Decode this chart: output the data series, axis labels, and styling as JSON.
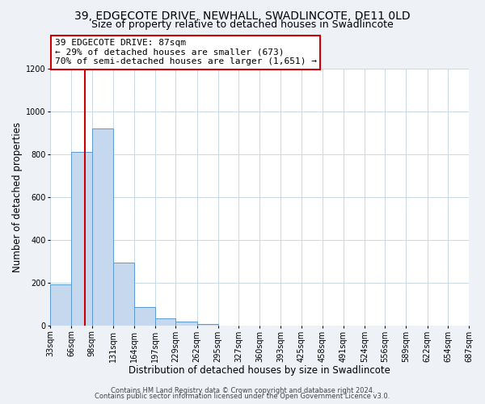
{
  "title": "39, EDGECOTE DRIVE, NEWHALL, SWADLINCOTE, DE11 0LD",
  "subtitle": "Size of property relative to detached houses in Swadlincote",
  "xlabel": "Distribution of detached houses by size in Swadlincote",
  "ylabel": "Number of detached properties",
  "bin_edges": [
    33,
    66,
    98,
    131,
    164,
    197,
    229,
    262,
    295,
    327,
    360,
    393,
    425,
    458,
    491,
    524,
    556,
    589,
    622,
    654,
    687
  ],
  "bar_heights": [
    193,
    810,
    920,
    295,
    88,
    35,
    18,
    8,
    0,
    0,
    0,
    0,
    0,
    0,
    0,
    0,
    0,
    0,
    0,
    0
  ],
  "bar_color": "#c5d8ed",
  "bar_edge_color": "#5b9bd5",
  "vline_x": 87,
  "vline_color": "#cc0000",
  "ann_line1": "39 EDGECOTE DRIVE: 87sqm",
  "ann_line2": "← 29% of detached houses are smaller (673)",
  "ann_line3": "70% of semi-detached houses are larger (1,651) →",
  "annotation_box_color": "#ffffff",
  "annotation_box_edge": "#cc0000",
  "ylim": [
    0,
    1200
  ],
  "yticks": [
    0,
    200,
    400,
    600,
    800,
    1000,
    1200
  ],
  "tick_labels": [
    "33sqm",
    "66sqm",
    "98sqm",
    "131sqm",
    "164sqm",
    "197sqm",
    "229sqm",
    "262sqm",
    "295sqm",
    "327sqm",
    "360sqm",
    "393sqm",
    "425sqm",
    "458sqm",
    "491sqm",
    "524sqm",
    "556sqm",
    "589sqm",
    "622sqm",
    "654sqm",
    "687sqm"
  ],
  "footer1": "Contains HM Land Registry data © Crown copyright and database right 2024.",
  "footer2": "Contains public sector information licensed under the Open Government Licence v3.0.",
  "bg_color": "#eef2f7",
  "plot_bg_color": "#ffffff",
  "grid_color": "#c8d8e8",
  "title_fontsize": 10,
  "subtitle_fontsize": 9,
  "axis_label_fontsize": 8.5,
  "tick_fontsize": 7,
  "ann_fontsize": 8,
  "footer_fontsize": 6
}
